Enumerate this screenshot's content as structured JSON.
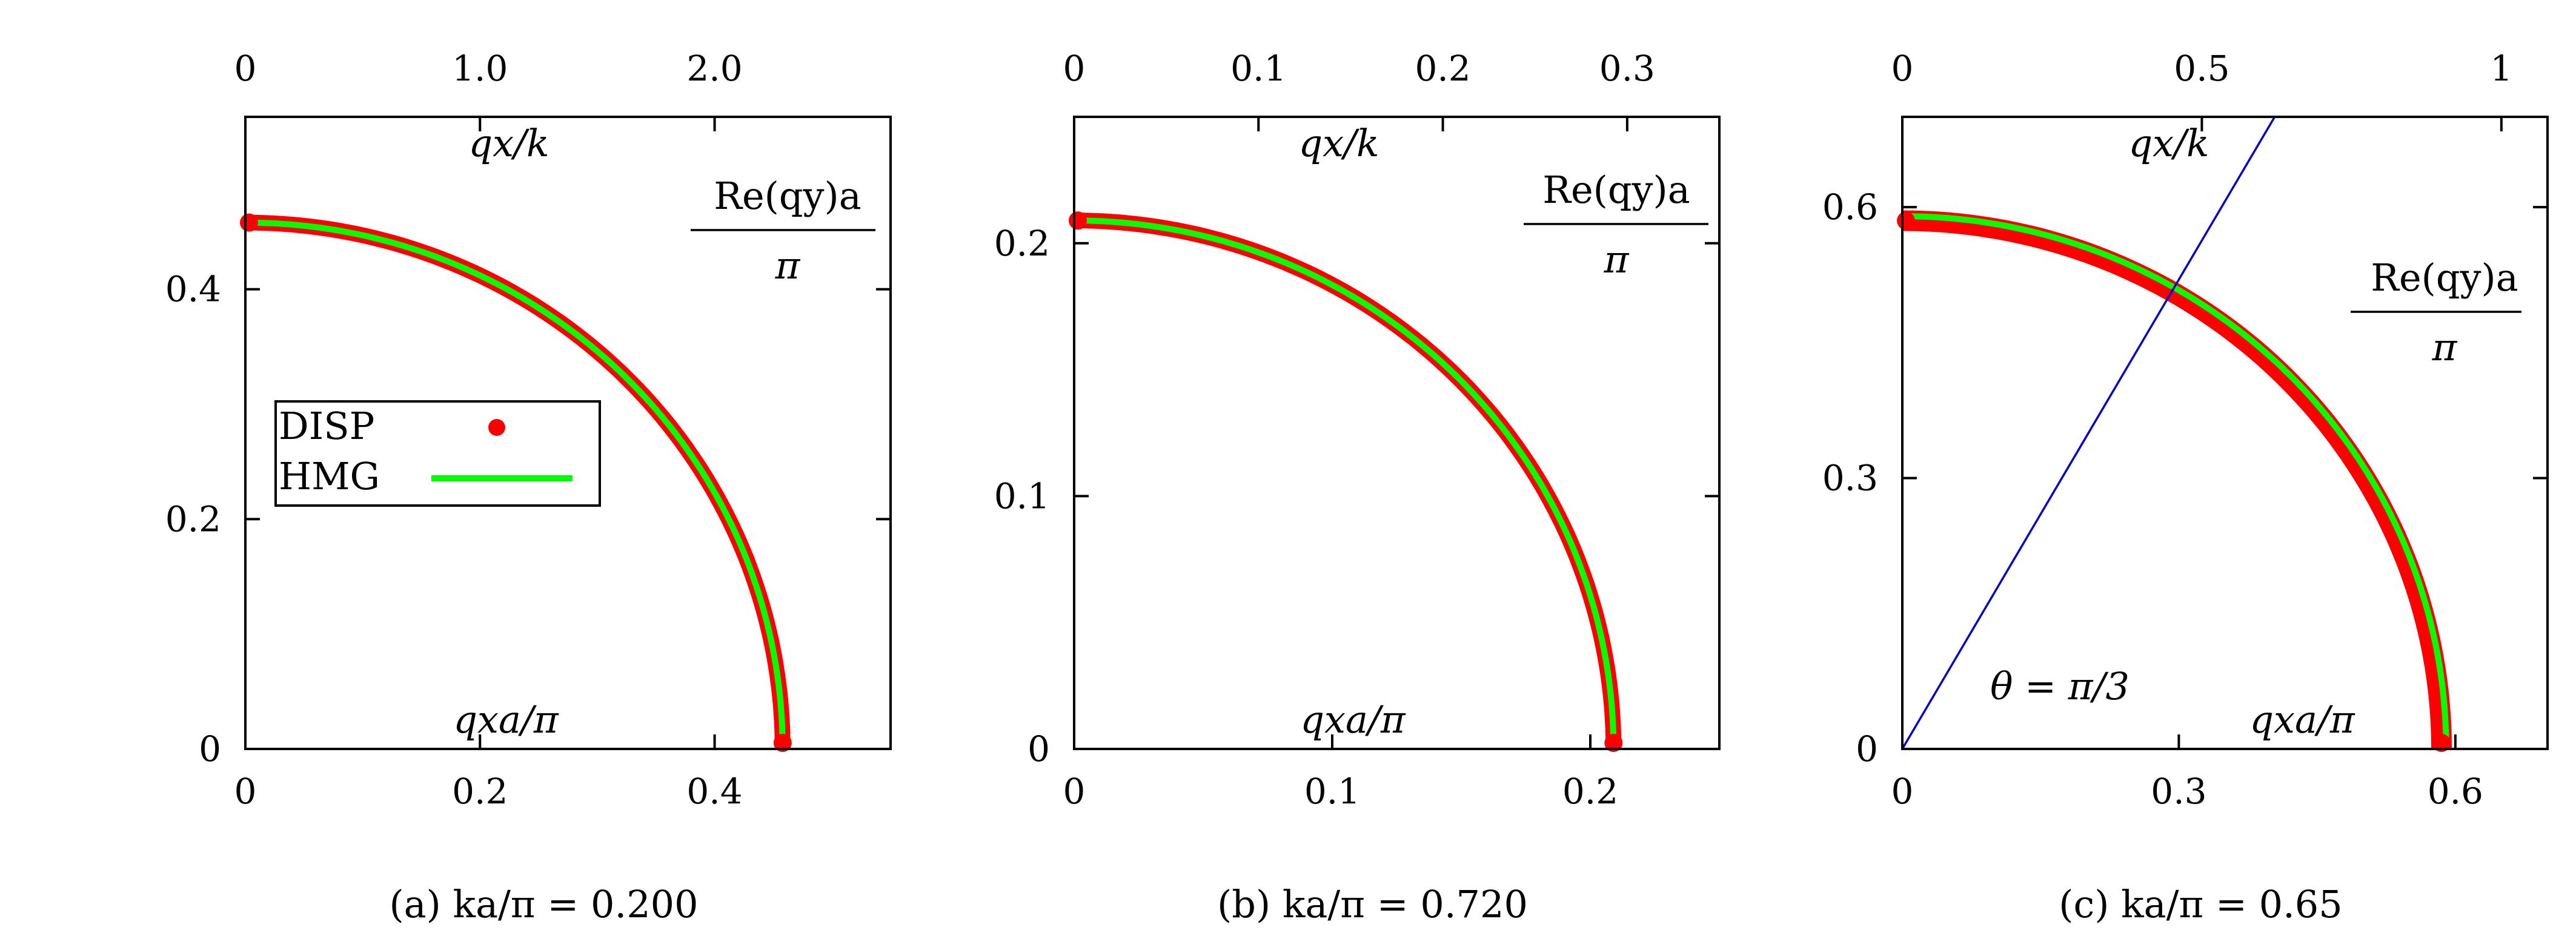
{
  "chart_data": [
    {
      "id": "a",
      "type": "scatter",
      "caption": "(a) ka/π = 0.200",
      "x_bottom": {
        "range": [
          0,
          0.55
        ],
        "ticks": [
          0,
          0.2,
          0.4
        ],
        "tick_labels": [
          "0",
          "0.2",
          "0.4"
        ]
      },
      "y_left": {
        "range": [
          0,
          0.55
        ],
        "ticks": [
          0,
          0.2,
          0.4
        ],
        "tick_labels": [
          "0",
          "0.2",
          "0.4"
        ]
      },
      "x_top": {
        "range": [
          0,
          2.75
        ],
        "ticks": [
          0,
          1.0,
          2.0
        ],
        "tick_labels": [
          "0",
          "1.0",
          "2.0"
        ]
      },
      "annotations": {
        "top_label": "qx/k",
        "bottom_label": "qxa/π",
        "right_label_num": "Re(qy)a",
        "right_label_den": "π"
      },
      "legend": {
        "entries": [
          "DISP",
          "HMG"
        ]
      },
      "series": [
        {
          "name": "DISP",
          "kind": "arc",
          "radius": 0.458,
          "color": "#ff0000"
        },
        {
          "name": "HMG",
          "kind": "arc",
          "radius": 0.458,
          "color": "#00ff00"
        }
      ]
    },
    {
      "id": "b",
      "type": "scatter",
      "caption": "(b) ka/π = 0.720",
      "x_bottom": {
        "range": [
          0,
          0.25
        ],
        "ticks": [
          0,
          0.1,
          0.2
        ],
        "tick_labels": [
          "0",
          "0.1",
          "0.2"
        ]
      },
      "y_left": {
        "range": [
          0,
          0.25
        ],
        "ticks": [
          0,
          0.1,
          0.2
        ],
        "tick_labels": [
          "0",
          "0.1",
          "0.2"
        ]
      },
      "x_top": {
        "range": [
          0,
          0.35
        ],
        "ticks": [
          0,
          0.1,
          0.2,
          0.3
        ],
        "tick_labels": [
          "0",
          "0.1",
          "0.2",
          "0.3"
        ]
      },
      "annotations": {
        "top_label": "qx/k",
        "bottom_label": "qxa/π",
        "right_label_num": "Re(qy)a",
        "right_label_den": "π"
      },
      "series": [
        {
          "name": "DISP",
          "kind": "arc",
          "radius": 0.209,
          "color": "#ff0000"
        },
        {
          "name": "HMG",
          "kind": "arc",
          "radius": 0.209,
          "color": "#00ff00"
        }
      ]
    },
    {
      "id": "c",
      "type": "scatter",
      "caption": "(c) ka/π = 0.65",
      "x_bottom": {
        "range": [
          0,
          0.7
        ],
        "ticks": [
          0,
          0.3,
          0.6
        ],
        "tick_labels": [
          "0",
          "0.3",
          "0.6"
        ]
      },
      "y_left": {
        "range": [
          0,
          0.7
        ],
        "ticks": [
          0,
          0.3,
          0.6
        ],
        "tick_labels": [
          "0",
          "0.3",
          "0.6"
        ]
      },
      "x_top": {
        "range": [
          0,
          1.077
        ],
        "ticks": [
          0,
          0.5,
          1
        ],
        "tick_labels": [
          "0",
          "0.5",
          "1"
        ]
      },
      "annotations": {
        "top_label": "qx/k",
        "bottom_label": "qxa/π",
        "right_label_num": "Re(qy)a",
        "right_label_den": "π",
        "angle_label": "θ = π/3"
      },
      "series": [
        {
          "name": "DISP",
          "kind": "arc",
          "radius": 0.585,
          "color": "#ff0000"
        },
        {
          "name": "HMG",
          "kind": "arc",
          "radius": 0.59,
          "color": "#00ff00"
        },
        {
          "kind": "line",
          "x": [
            0,
            0.404
          ],
          "y": [
            0,
            0.7
          ],
          "color": "#0000cc"
        }
      ]
    }
  ]
}
